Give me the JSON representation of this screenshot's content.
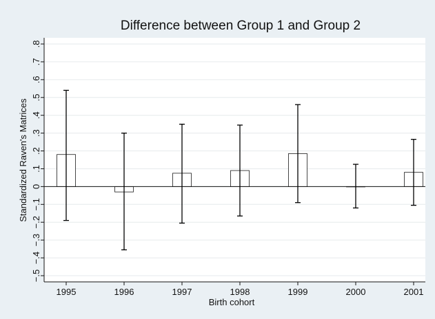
{
  "chart_data": {
    "type": "bar",
    "title": "Difference between Group 1 and Group 2",
    "xlabel": "Birth cohort",
    "ylabel": "Standardized Raven's Matrices",
    "ylim": [
      -0.5,
      0.8
    ],
    "ytick_values": [
      -0.5,
      -0.4,
      -0.3,
      -0.2,
      -0.1,
      0,
      0.1,
      0.2,
      0.3,
      0.4,
      0.5,
      0.6,
      0.7,
      0.8
    ],
    "ytick_labels": [
      "−.5",
      "−.4",
      "−.3",
      "−.2",
      "−.1",
      "0",
      ".1",
      ".2",
      ".3",
      ".4",
      ".5",
      ".6",
      ".7",
      ".8"
    ],
    "grid": true,
    "categories": [
      "1995",
      "1996",
      "1997",
      "1998",
      "1999",
      "2000",
      "2001"
    ],
    "values": [
      0.18,
      -0.03,
      0.075,
      0.09,
      0.185,
      0.0,
      0.08
    ],
    "ci_low": [
      -0.19,
      -0.355,
      -0.205,
      -0.165,
      -0.09,
      -0.12,
      -0.105
    ],
    "ci_high": [
      0.54,
      0.3,
      0.35,
      0.345,
      0.46,
      0.125,
      0.265
    ],
    "colors": {
      "background": "#eaf0f4",
      "plot_background": "#ffffff",
      "bar_fill": "#ffffff",
      "bar_stroke": "#1a1a1a",
      "errorbar": "#000000",
      "grid": "#e6eaec"
    }
  }
}
